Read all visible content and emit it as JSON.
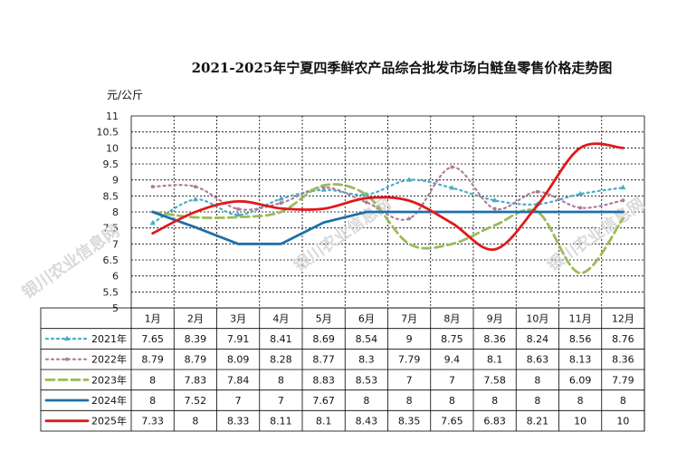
{
  "chart_data": {
    "type": "line",
    "title": "2021-2025年宁夏四季鲜农产品综合批发市场白鲢鱼零售价格走势图",
    "ylabel": "元/公斤",
    "ylim": [
      5,
      11
    ],
    "yticks": [
      "5",
      "5.5",
      "6",
      "6.5",
      "7",
      "7.5",
      "8",
      "8.5",
      "9",
      "9.5",
      "10",
      "10.5",
      "11"
    ],
    "categories": [
      "1月",
      "2月",
      "3月",
      "4月",
      "5月",
      "6月",
      "7月",
      "8月",
      "9月",
      "10月",
      "11月",
      "12月"
    ],
    "grid": true,
    "series": [
      {
        "name": "2021年",
        "color": "#4bacc6",
        "dash": "dot",
        "marker": "triangle",
        "labels": [
          "7.65",
          "8.39",
          "7.91",
          "8.41",
          "8.69",
          "8.54",
          "9",
          "8.75",
          "8.36",
          "8.24",
          "8.56",
          "8.76"
        ],
        "values": [
          7.65,
          8.39,
          7.91,
          8.41,
          8.69,
          8.54,
          9,
          8.75,
          8.36,
          8.24,
          8.56,
          8.76
        ]
      },
      {
        "name": "2022年",
        "color": "#b07a9a",
        "dash": "dot",
        "marker": "dot",
        "labels": [
          "8.79",
          "8.79",
          "8.09",
          "8.28",
          "8.77",
          "8.3",
          "7.79",
          "9.4",
          "8.1",
          "8.63",
          "8.13",
          "8.36"
        ],
        "values": [
          8.79,
          8.79,
          8.09,
          8.28,
          8.77,
          8.3,
          7.79,
          9.4,
          8.1,
          8.63,
          8.13,
          8.36
        ]
      },
      {
        "name": "2023年",
        "color": "#9bbb59",
        "dash": "dash",
        "marker": "none",
        "labels": [
          "8",
          "7.83",
          "7.84",
          "8",
          "8.83",
          "8.53",
          "7",
          "7",
          "7.58",
          "8",
          "6.09",
          "7.79"
        ],
        "values": [
          8,
          7.83,
          7.84,
          8,
          8.83,
          8.53,
          7,
          7,
          7.58,
          8,
          6.09,
          7.79
        ]
      },
      {
        "name": "2024年",
        "color": "#1f6fa8",
        "dash": "solid",
        "marker": "none",
        "labels": [
          "8",
          "7.52",
          "7",
          "7",
          "7.67",
          "8",
          "8",
          "8",
          "8",
          "8",
          "8",
          "8"
        ],
        "values": [
          8,
          7.52,
          7,
          7,
          7.67,
          8,
          8,
          8,
          8,
          8,
          8,
          8
        ]
      },
      {
        "name": "2025年",
        "color": "#e0191b",
        "dash": "solid",
        "marker": "none",
        "labels": [
          "7.33",
          "8",
          "8.33",
          "8.11",
          "8.1",
          "8.43",
          "8.35",
          "7.65",
          "6.83",
          "8.21",
          "10",
          "10"
        ],
        "values": [
          7.33,
          8,
          8.33,
          8.11,
          8.1,
          8.43,
          8.35,
          7.65,
          6.83,
          8.21,
          10,
          10
        ]
      }
    ]
  },
  "watermark": [
    "银川农业信息网",
    "银川农业信息网",
    "银川农业信息网"
  ]
}
